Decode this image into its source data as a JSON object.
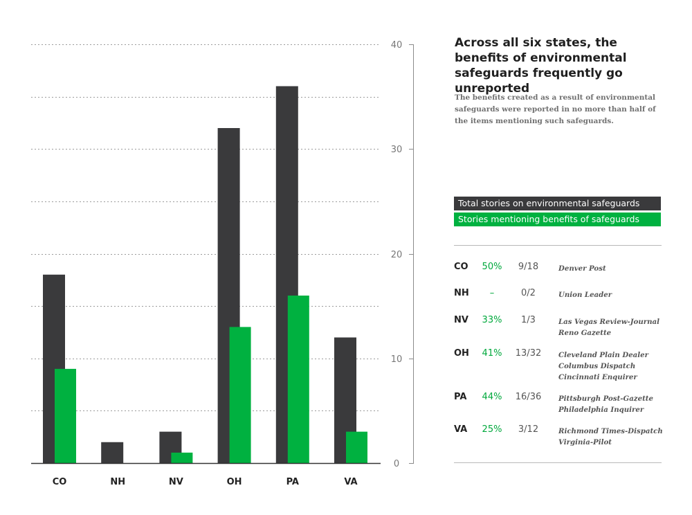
{
  "chart_data": {
    "type": "bar",
    "categories": [
      "CO",
      "NH",
      "NV",
      "OH",
      "PA",
      "VA"
    ],
    "series": [
      {
        "name": "Total stories on environmental safeguards",
        "color": "#3a3a3c",
        "values": [
          18,
          2,
          3,
          32,
          36,
          12
        ]
      },
      {
        "name": "Stories mentioning benefits of safeguards",
        "color": "#00b140",
        "values": [
          9,
          0,
          1,
          13,
          16,
          3
        ]
      }
    ],
    "ylim": [
      0,
      40
    ],
    "y_ticks": [
      0,
      10,
      20,
      30,
      40
    ],
    "y_axis_side": "right",
    "grid": true,
    "title": "Across all six states, the benefits of environmental safeguards frequently go unreported",
    "subtitle": "The benefits created as a result of environmental safeguards were reported in no more than half of the items mentioning such safeguards.",
    "xlabel": "",
    "ylabel": ""
  },
  "header": {
    "title": "Across all six states, the benefits of environmental safeguards frequently go unreported",
    "subtitle": "The benefits created as a result of environmental safeguards were reported in no more than half of the items mentioning such safeguards."
  },
  "legend": {
    "total": "Total stories on environmental safeguards",
    "benefit": "Stories mentioning benefits of safeguards"
  },
  "table": {
    "rows": [
      {
        "state": "CO",
        "percent": "50%",
        "fraction": "9/18",
        "papers": [
          "Denver Post"
        ]
      },
      {
        "state": "NH",
        "percent": "–",
        "fraction": "0/2",
        "papers": [
          "Union Leader"
        ]
      },
      {
        "state": "NV",
        "percent": "33%",
        "fraction": "1/3",
        "papers": [
          "Las Vegas Review-Journal",
          "Reno Gazette"
        ]
      },
      {
        "state": "OH",
        "percent": "41%",
        "fraction": "13/32",
        "papers": [
          "Cleveland Plain Dealer",
          "Columbus Dispatch",
          "Cincinnati Enquirer"
        ]
      },
      {
        "state": "PA",
        "percent": "44%",
        "fraction": "16/36",
        "papers": [
          "Pittsburgh Post-Gazette",
          "Philadelphia Inquirer"
        ]
      },
      {
        "state": "VA",
        "percent": "25%",
        "fraction": "3/12",
        "papers": [
          "Richmond Times-Dispatch",
          "Virginia-Pilot"
        ]
      }
    ]
  }
}
